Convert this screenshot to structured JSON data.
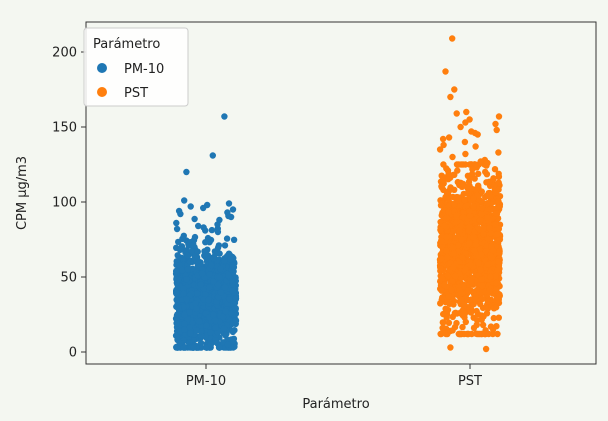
{
  "chart_data": {
    "type": "scatter",
    "subtype": "strip",
    "title": "",
    "xlabel": "Parámetro",
    "ylabel": "CPM µg/m3",
    "categories": [
      "PM-10",
      "PST"
    ],
    "ylim": [
      -8,
      220
    ],
    "yticks": [
      0,
      50,
      100,
      150,
      200
    ],
    "grid": false,
    "legend": {
      "title": "Parámetro",
      "placement": "top-left",
      "entries": [
        "PM-10",
        "PST"
      ]
    },
    "series": [
      {
        "name": "PM-10",
        "color": "#1f77b4",
        "bulk_range": [
          3,
          100
        ],
        "bulk_center": 35,
        "bulk_spread": 17,
        "outliers": [
          157,
          131,
          120,
          101,
          99,
          98,
          97,
          96,
          95,
          94,
          93,
          92,
          90,
          88,
          86,
          85,
          84,
          83,
          82,
          81,
          80,
          3,
          4,
          5,
          5,
          6
        ]
      },
      {
        "name": "PST",
        "color": "#ff7f0e",
        "bulk_range": [
          12,
          125
        ],
        "bulk_center": 68,
        "bulk_spread": 24,
        "outliers": [
          209,
          187,
          175,
          170,
          160,
          159,
          157,
          155,
          153,
          152,
          150,
          148,
          147,
          146,
          145,
          143,
          142,
          140,
          138,
          137,
          135,
          133,
          132,
          130,
          128,
          127,
          126,
          2,
          3,
          12,
          13,
          15,
          16,
          18
        ]
      }
    ]
  }
}
